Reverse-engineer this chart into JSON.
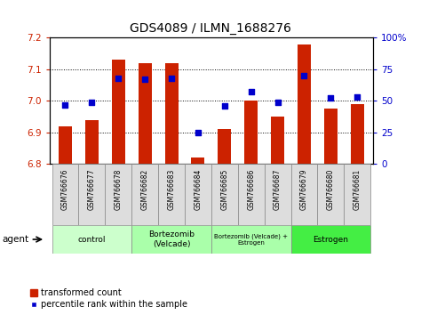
{
  "title": "GDS4089 / ILMN_1688276",
  "samples": [
    "GSM766676",
    "GSM766677",
    "GSM766678",
    "GSM766682",
    "GSM766683",
    "GSM766684",
    "GSM766685",
    "GSM766686",
    "GSM766687",
    "GSM766679",
    "GSM766680",
    "GSM766681"
  ],
  "bar_values": [
    6.92,
    6.94,
    7.13,
    7.12,
    7.12,
    6.82,
    6.91,
    7.0,
    6.95,
    7.18,
    6.975,
    6.99
  ],
  "percentile_values": [
    47,
    49,
    68,
    67,
    68,
    25,
    46,
    57,
    49,
    70,
    52,
    53
  ],
  "bar_bottom": 6.8,
  "ylim_left": [
    6.8,
    7.2
  ],
  "ylim_right": [
    0,
    100
  ],
  "yticks_left": [
    6.8,
    6.9,
    7.0,
    7.1,
    7.2
  ],
  "yticks_right": [
    0,
    25,
    50,
    75,
    100
  ],
  "ytick_labels_right": [
    "0",
    "25",
    "50",
    "75",
    "100%"
  ],
  "bar_color": "#cc2200",
  "dot_color": "#0000cc",
  "groups_info": [
    {
      "label": "control",
      "indices": [
        0,
        1,
        2
      ],
      "color": "#ccffcc"
    },
    {
      "label": "Bortezomib\n(Velcade)",
      "indices": [
        3,
        4,
        5
      ],
      "color": "#aaffaa"
    },
    {
      "label": "Bortezomib (Velcade) +\nEstrogen",
      "indices": [
        6,
        7,
        8
      ],
      "color": "#aaffaa"
    },
    {
      "label": "Estrogen",
      "indices": [
        9,
        10,
        11
      ],
      "color": "#44ee44"
    }
  ],
  "agent_label": "agent",
  "legend_bar_label": "transformed count",
  "legend_dot_label": "percentile rank within the sample",
  "title_fontsize": 10,
  "bar_width": 0.5,
  "sample_fontsize": 5.5,
  "group_fontsize": 6.5,
  "ytick_fontsize": 7.5,
  "legend_fontsize": 7
}
